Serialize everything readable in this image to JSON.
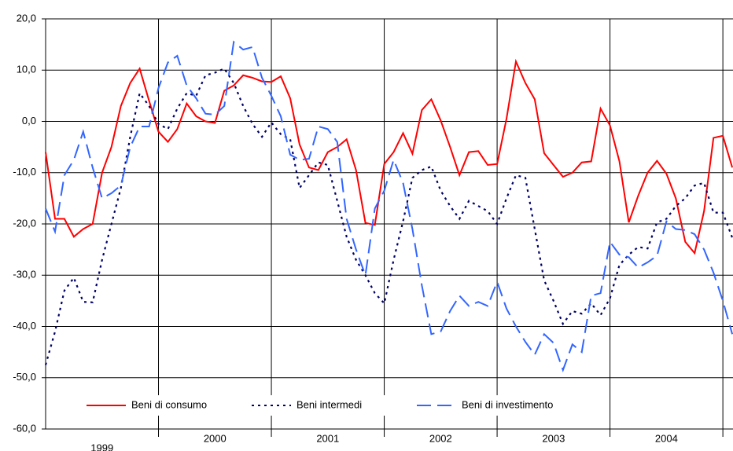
{
  "chart_data": {
    "type": "line",
    "categories": [
      null,
      null,
      null,
      null,
      null,
      null,
      "1999",
      null,
      null,
      null,
      null,
      null,
      null,
      null,
      null,
      null,
      null,
      null,
      "2000",
      null,
      null,
      null,
      null,
      null,
      null,
      null,
      null,
      null,
      null,
      null,
      "2001",
      null,
      null,
      null,
      null,
      null,
      null,
      null,
      null,
      null,
      null,
      null,
      "2002",
      null,
      null,
      null,
      null,
      null,
      null,
      null,
      null,
      null,
      null,
      null,
      "2003",
      null,
      null,
      null,
      null,
      null,
      null,
      null,
      null,
      null,
      null,
      null,
      "2004",
      null,
      null,
      null,
      null,
      null,
      null,
      null
    ],
    "series": [
      {
        "name": "Beni di consumo",
        "color": "#ff0000",
        "dash": "solid",
        "values": [
          -6,
          -19,
          -19,
          -22.5,
          -21,
          -20,
          -10,
          -5,
          3,
          7.5,
          10.3,
          4,
          -2,
          -4,
          -1.5,
          3.5,
          1,
          0,
          -0.3,
          6,
          7,
          9,
          8.5,
          7.8,
          7.7,
          8.8,
          4.5,
          -4.5,
          -9,
          -9.5,
          -6,
          -5,
          -3.5,
          -9.5,
          -19.8,
          -20.2,
          -8.3,
          -6,
          -2.3,
          -6.3,
          2.2,
          4.3,
          0.2,
          -5,
          -10.5,
          -6,
          -5.8,
          -8.5,
          -8.3,
          0.5,
          11.7,
          7.5,
          4.3,
          -6.2,
          -8.5,
          -10.8,
          -10,
          -8,
          -7.8,
          2.5,
          -0.8,
          -7.8,
          -19.7,
          -14.5,
          -10,
          -7.7,
          -10.2,
          -15,
          -23.5,
          -25.7,
          -17.5,
          -3.2,
          -2.8,
          -9
        ]
      },
      {
        "name": "Beni intermedi",
        "color": "#000066",
        "dash": "dot",
        "values": [
          -47.5,
          -41,
          -33,
          -30.5,
          -35.2,
          -35.3,
          -27,
          -20,
          -13,
          -3,
          5.5,
          3,
          -0.5,
          -1.5,
          2.5,
          5.5,
          5,
          9,
          9.5,
          10.3,
          7.5,
          3,
          -0.5,
          -3,
          -0.2,
          -2.5,
          -3.5,
          -13,
          -10.5,
          -8,
          -8.5,
          -15.5,
          -22.5,
          -27,
          -30,
          -33.5,
          -35.5,
          -27,
          -19.5,
          -11,
          -9.5,
          -8.8,
          -13.5,
          -16.5,
          -19,
          -15.5,
          -16.5,
          -17.5,
          -20,
          -15,
          -10.5,
          -11,
          -21,
          -31,
          -35,
          -39.5,
          -37,
          -37.5,
          -35.5,
          -37.8,
          -34.5,
          -28,
          -26,
          -24.5,
          -24.8,
          -19.7,
          -19,
          -16.5,
          -15,
          -12.5,
          -12,
          -17.8,
          -17.8,
          -22.7
        ]
      },
      {
        "name": "Beni di investimento",
        "color": "#3366ff",
        "dash": "dash",
        "values": [
          -17,
          -21.5,
          -10.5,
          -7.5,
          -2,
          -9,
          -15,
          -14,
          -12.5,
          -5,
          -1,
          -1,
          6.5,
          11.5,
          12.8,
          7,
          4.5,
          1.5,
          1.3,
          3,
          15.5,
          14,
          14.5,
          8.5,
          5,
          1,
          -6.5,
          -7.5,
          -7.3,
          -1,
          -1.5,
          -4,
          -19,
          -25,
          -30,
          -17,
          -13.5,
          -7.5,
          -12,
          -21,
          -32,
          -41.5,
          -41,
          -37,
          -34,
          -36,
          -35.2,
          -36,
          -31.3,
          -36.5,
          -40,
          -43,
          -45.5,
          -41.5,
          -43.2,
          -48.5,
          -43.5,
          -45,
          -34,
          -33.5,
          -23.5,
          -26,
          -26.5,
          -28.5,
          -27.5,
          -26.2,
          -19.5,
          -21,
          -21.2,
          -22,
          -25,
          -29.5,
          -35,
          -41.5
        ]
      }
    ],
    "ylim": [
      -60,
      20
    ],
    "yticks": [
      {
        "value": -60,
        "label": "-60,0"
      },
      {
        "value": -50,
        "label": "-50,0"
      },
      {
        "value": -40,
        "label": "-40,0"
      },
      {
        "value": -30,
        "label": "-30,0"
      },
      {
        "value": -20,
        "label": "-20,0"
      },
      {
        "value": -10,
        "label": "-10,0"
      },
      {
        "value": 0,
        "label": "0,0"
      },
      {
        "value": 10,
        "label": "10,0"
      },
      {
        "value": 20,
        "label": "20,0"
      }
    ],
    "grid": true,
    "legend": "bottom"
  }
}
